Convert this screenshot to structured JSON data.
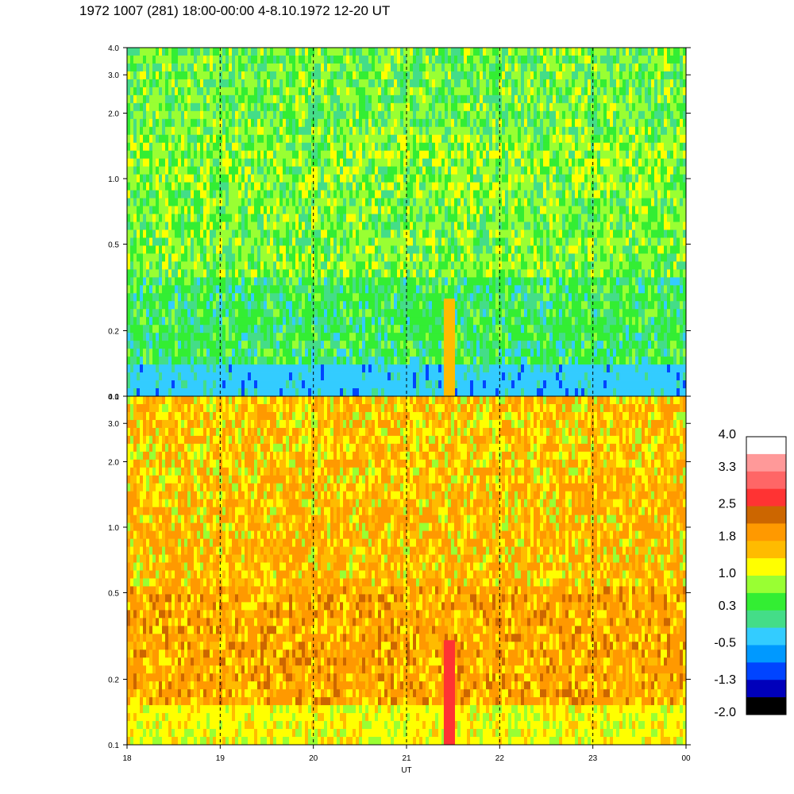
{
  "title": "1972 1007 (281) 18:00-00:00 4-8.10.1972  12-20 UT",
  "chart_data": [
    {
      "type": "heatmap",
      "panel": "upper",
      "title": "",
      "xlabel": "",
      "ylabel": "",
      "xlim": [
        18,
        24
      ],
      "ylim": [
        0.1,
        4.0
      ],
      "yscale": "log",
      "yticks": [
        "0.1",
        "0.2",
        "0.5",
        "1.0",
        "2.0",
        "3.0",
        "4.0"
      ],
      "ytick_values": [
        0.1,
        0.2,
        0.5,
        1.0,
        2.0,
        3.0,
        4.0
      ],
      "dominant_levels": [
        "green",
        "light-green",
        "cyan-green",
        "cyan"
      ],
      "grid": "dashed vertical lines at each hour"
    },
    {
      "type": "heatmap",
      "panel": "lower",
      "title": "",
      "xlabel": "UT",
      "ylabel": "",
      "xlim": [
        18,
        24
      ],
      "ylim": [
        0.1,
        4.0
      ],
      "yscale": "log",
      "yticks": [
        "0.1",
        "0.2",
        "0.5",
        "1.0",
        "2.0",
        "3.0",
        "4.0"
      ],
      "ytick_values": [
        0.1,
        0.2,
        0.5,
        1.0,
        2.0,
        3.0,
        4.0
      ],
      "xticks": [
        "18",
        "19",
        "20",
        "21",
        "22",
        "23",
        "00"
      ],
      "xtick_values": [
        18,
        19,
        20,
        21,
        22,
        23,
        24
      ],
      "dominant_levels": [
        "orange",
        "yellow-orange",
        "yellow"
      ],
      "grid": "dashed vertical lines at each hour"
    }
  ],
  "colorbar": {
    "labels": [
      "4.0",
      "3.3",
      "2.5",
      "1.8",
      "1.0",
      "0.3",
      "-0.5",
      "-1.3",
      "-2.0"
    ],
    "label_values": [
      4.0,
      3.3,
      2.5,
      1.8,
      1.0,
      0.3,
      -0.5,
      -1.3,
      -2.0
    ],
    "colors_top_to_bottom": [
      "#ffffff",
      "#ff9999",
      "#ff6666",
      "#ff3333",
      "#cc6600",
      "#ff9900",
      "#ffbb00",
      "#ffff00",
      "#99ff33",
      "#33ee33",
      "#44dd88",
      "#33ccff",
      "#0099ff",
      "#0044ff",
      "#0000bb",
      "#000000"
    ]
  },
  "palette": {
    "cyan": "#33ccff",
    "cyan_green": "#44dd88",
    "green": "#33ee33",
    "light_green": "#99ff33",
    "yellow": "#ffff00",
    "yellow_orange": "#ffbb00",
    "orange": "#ff9900",
    "dark_orange": "#cc6600",
    "red": "#ff3333",
    "pink": "#ff6666",
    "blue": "#0044ff",
    "dark_blue": "#0000bb"
  }
}
